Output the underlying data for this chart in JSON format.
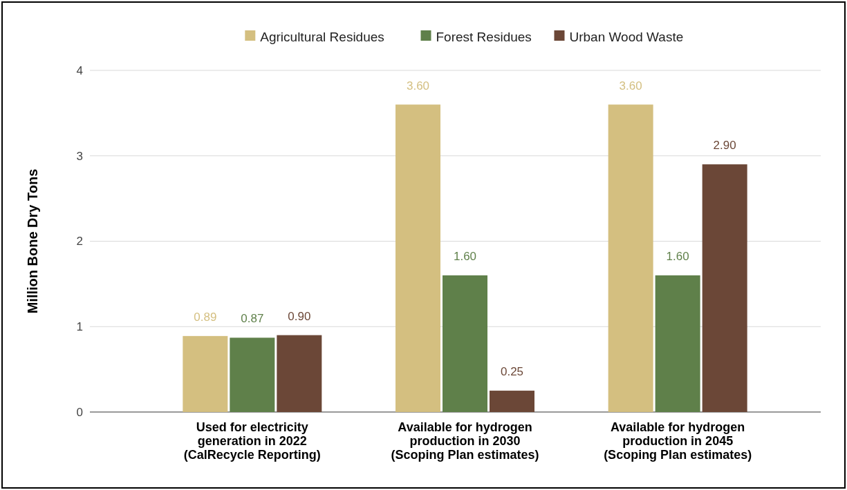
{
  "chart_data": {
    "type": "bar",
    "ylabel": "Million Bone Dry Tons",
    "categories": [
      "Used for electricity\ngeneration in 2022\n(CalRecycle Reporting)",
      "Available for hydrogen\nproduction in 2030\n(Scoping Plan estimates)",
      "Available for hydrogen\nproduction in 2045\n(Scoping Plan estimates)"
    ],
    "series": [
      {
        "name": "Agricultural Residues",
        "color": "#d4bf80",
        "values": [
          0.89,
          3.6,
          3.6
        ],
        "value_labels": [
          "0.89",
          "3.60",
          "3.60"
        ]
      },
      {
        "name": "Forest Residues",
        "color": "#5f804a",
        "values": [
          0.87,
          1.6,
          1.6
        ],
        "value_labels": [
          "0.87",
          "1.60",
          "1.60"
        ]
      },
      {
        "name": "Urban Wood Waste",
        "color": "#6b4737",
        "values": [
          0.9,
          0.25,
          2.9
        ],
        "value_labels": [
          "0.90",
          "0.25",
          "2.90"
        ]
      }
    ],
    "ylim": [
      0,
      4
    ],
    "yticks": [
      0,
      1,
      2,
      3,
      4
    ],
    "grid": "y",
    "legend": "top"
  }
}
